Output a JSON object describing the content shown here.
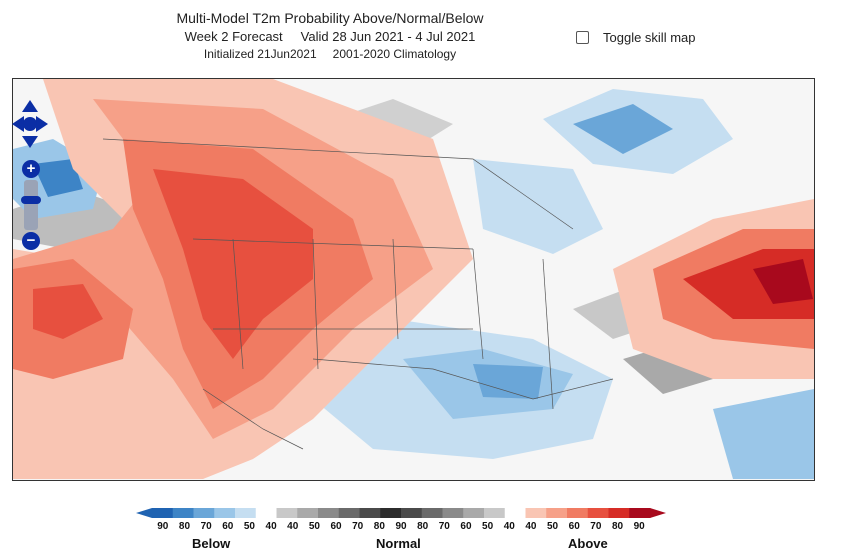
{
  "title": {
    "line1": "Multi-Model T2m Probability Above/Normal/Below",
    "line2a": "Week 2 Forecast",
    "line2b": "Valid 28 Jun 2021 - 4 Jul 2021",
    "line3a": "Initialized 21Jun2021",
    "line3b": "2001-2020 Climatology"
  },
  "toggle": {
    "label": "Toggle skill map",
    "checked": false
  },
  "nav": {
    "zoom_in_glyph": "+",
    "zoom_out_glyph": "−"
  },
  "legend": {
    "ticks": [
      "90",
      "80",
      "70",
      "60",
      "50",
      "40",
      "40",
      "50",
      "60",
      "70",
      "80",
      "90",
      "80",
      "70",
      "60",
      "50",
      "40",
      "40",
      "50",
      "60",
      "70",
      "80",
      "90"
    ],
    "labels": {
      "below": "Below",
      "normal": "Normal",
      "above": "Above"
    },
    "colors": {
      "below": [
        "#1f63b2",
        "#3d84c6",
        "#6aa6d8",
        "#9ac6e8",
        "#c5def1"
      ],
      "normal": [
        "#c8c8c8",
        "#a9a9a9",
        "#8a8a8a",
        "#6a6a6a",
        "#4a4a4a",
        "#2c2c2c",
        "#4a4a4a",
        "#6a6a6a",
        "#8a8a8a",
        "#a9a9a9",
        "#c8c8c8"
      ],
      "above": [
        "#f9c5b3",
        "#f6a088",
        "#f07b62",
        "#e7503f",
        "#d62c26",
        "#a8091d"
      ]
    }
  }
}
